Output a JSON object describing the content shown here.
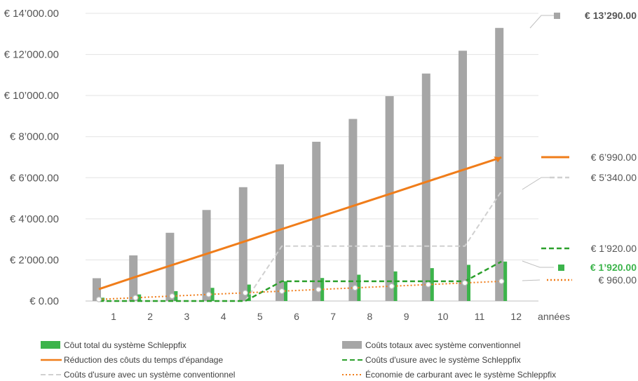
{
  "chart_data": {
    "type": "bar",
    "categories": [
      "1",
      "2",
      "3",
      "4",
      "5",
      "6",
      "7",
      "8",
      "9",
      "10",
      "11",
      "12"
    ],
    "x_unit_label": "années",
    "ylim": [
      0,
      14000
    ],
    "y_ticks": [
      {
        "value": 0,
        "label": "€ 0.00"
      },
      {
        "value": 2000,
        "label": "€ 2’000.00"
      },
      {
        "value": 4000,
        "label": "€ 4’000.00"
      },
      {
        "value": 6000,
        "label": "€ 6’000.00"
      },
      {
        "value": 8000,
        "label": "€ 8’000.00"
      },
      {
        "value": 10000,
        "label": "€ 10’000.00"
      },
      {
        "value": 12000,
        "label": "€ 12’000.00"
      },
      {
        "value": 14000,
        "label": "€ 14’000.00"
      }
    ],
    "grid": "horizontal",
    "legend_position": "bottom",
    "series": [
      {
        "key": "schleppfix_total",
        "name": "Côut total du système Schleppfix",
        "kind": "bar",
        "color": "#3cb44b",
        "values": [
          160,
          320,
          480,
          640,
          800,
          960,
          1120,
          1280,
          1440,
          1600,
          1760,
          1920
        ]
      },
      {
        "key": "conventional_total",
        "name": "Coûts totaux avec système conventionnel",
        "kind": "bar",
        "color": "#a6a6a6",
        "values": [
          1110,
          2220,
          3320,
          4430,
          5540,
          6650,
          7750,
          8860,
          9970,
          11070,
          12180,
          13290
        ]
      },
      {
        "key": "time_reduction",
        "name": "Réduction des côuts du temps d'épandage",
        "kind": "line",
        "style": "solid",
        "color": "#f07d1a",
        "values": [
          580,
          1170,
          1750,
          2330,
          2910,
          3500,
          4080,
          4660,
          5240,
          5830,
          6410,
          6990
        ]
      },
      {
        "key": "wear_schleppfix",
        "name": "Coûts d'usure avec le système Schleppfix",
        "kind": "line",
        "style": "dashed",
        "color": "#2ca02c",
        "values": [
          0,
          0,
          0,
          0,
          0,
          960,
          960,
          960,
          960,
          960,
          960,
          1920
        ]
      },
      {
        "key": "wear_conventional",
        "name": "Coûts d'usure avec un système conventionnel",
        "kind": "line",
        "style": "dashed",
        "color": "#d0d0d0",
        "values": [
          0,
          0,
          0,
          0,
          0,
          2670,
          2670,
          2670,
          2670,
          2670,
          2670,
          5340
        ]
      },
      {
        "key": "fuel_saving",
        "name": "Économie de carburant avec le système Schleppfix",
        "kind": "line",
        "style": "dotted",
        "color": "#f07d1a",
        "values": [
          80,
          160,
          240,
          320,
          400,
          480,
          560,
          640,
          720,
          800,
          880,
          960
        ]
      }
    ],
    "annotations": [
      {
        "label": "€ 13’290.00",
        "series": "conventional_total",
        "value": 13290,
        "color": "#555555",
        "bold": true,
        "marker": "square"
      },
      {
        "label": "€ 6’990.00",
        "series": "time_reduction",
        "value": 6990,
        "color": "#555555",
        "bold": false,
        "marker": "solid-line"
      },
      {
        "label": "€ 5’340.00",
        "series": "wear_conventional",
        "value": 5340,
        "color": "#555555",
        "bold": false,
        "marker": "dashed-line"
      },
      {
        "label": "€ 1’920.00",
        "series": "wear_schleppfix",
        "value": 1920,
        "color": "#555555",
        "bold": false,
        "marker": "dashed-line"
      },
      {
        "label": "€ 1’920.00",
        "series": "schleppfix_total",
        "value": 1920,
        "color": "#3cb44b",
        "bold": true,
        "marker": "square"
      },
      {
        "label": "€ 960.00",
        "series": "fuel_saving",
        "value": 960,
        "color": "#555555",
        "bold": false,
        "marker": "dotted-line"
      }
    ]
  }
}
